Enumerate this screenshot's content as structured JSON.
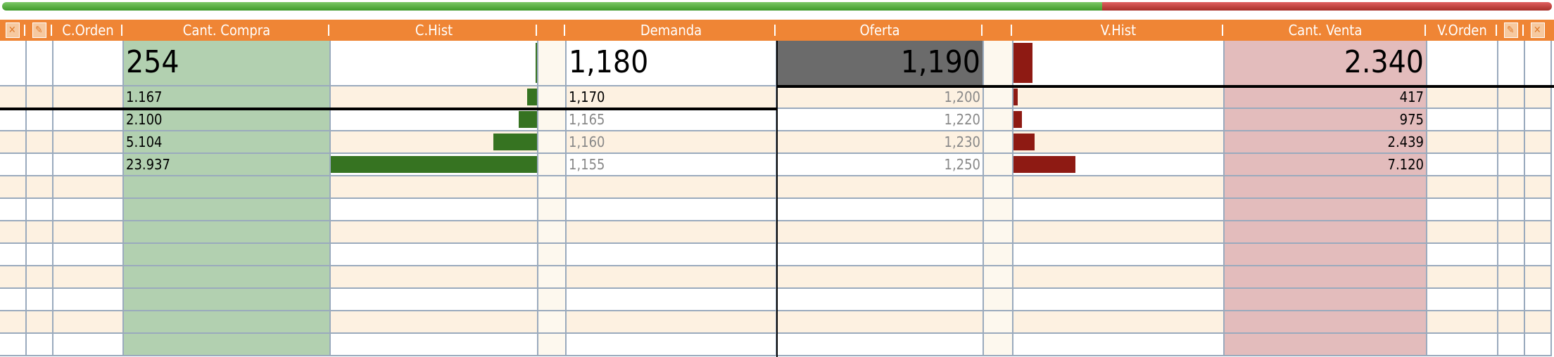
{
  "balance_bar": {
    "buy_fraction": 0.71,
    "buy_color": "#4CAF35",
    "sell_color": "#C0392B"
  },
  "header": {
    "icon_left_1": "close-doc-icon",
    "icon_left_2": "edit-doc-icon",
    "c_orden": "C.Orden",
    "cant_compra": "Cant. Compra",
    "c_hist": "C.Hist",
    "demanda": "Demanda",
    "oferta": "Oferta",
    "v_hist": "V.Hist",
    "cant_venta": "Cant. Venta",
    "v_orden": "V.Orden",
    "icon_right_1": "edit-doc-icon",
    "icon_right_2": "close-doc-icon"
  },
  "colors": {
    "header": "#EF8535",
    "buy_col": "#B2D0B0",
    "sell_col": "#E3BCBC",
    "buy_bar": "#367321",
    "sell_bar": "#8E1A13",
    "best_offer_bg": "#6B6B6B"
  },
  "rows": [
    {
      "cant_compra": "254",
      "c_hist_pct": 0.7,
      "demanda": "1,180",
      "oferta": "1,190",
      "v_hist_pct": 9,
      "cant_venta": "2.340"
    },
    {
      "cant_compra": "1.167",
      "c_hist_pct": 4.9,
      "demanda": "1,170",
      "oferta": "1,200",
      "v_hist_pct": 2,
      "cant_venta": "417"
    },
    {
      "cant_compra": "2.100",
      "c_hist_pct": 8.8,
      "demanda": "1,165",
      "oferta": "1,220",
      "v_hist_pct": 4,
      "cant_venta": "975"
    },
    {
      "cant_compra": "5.104",
      "c_hist_pct": 21.3,
      "demanda": "1,160",
      "oferta": "1,230",
      "v_hist_pct": 10,
      "cant_venta": "2.439"
    },
    {
      "cant_compra": "23.937",
      "c_hist_pct": 100,
      "demanda": "1,155",
      "oferta": "1,250",
      "v_hist_pct": 29.4,
      "cant_venta": "7.120"
    },
    {},
    {},
    {},
    {},
    {},
    {},
    {},
    {}
  ]
}
